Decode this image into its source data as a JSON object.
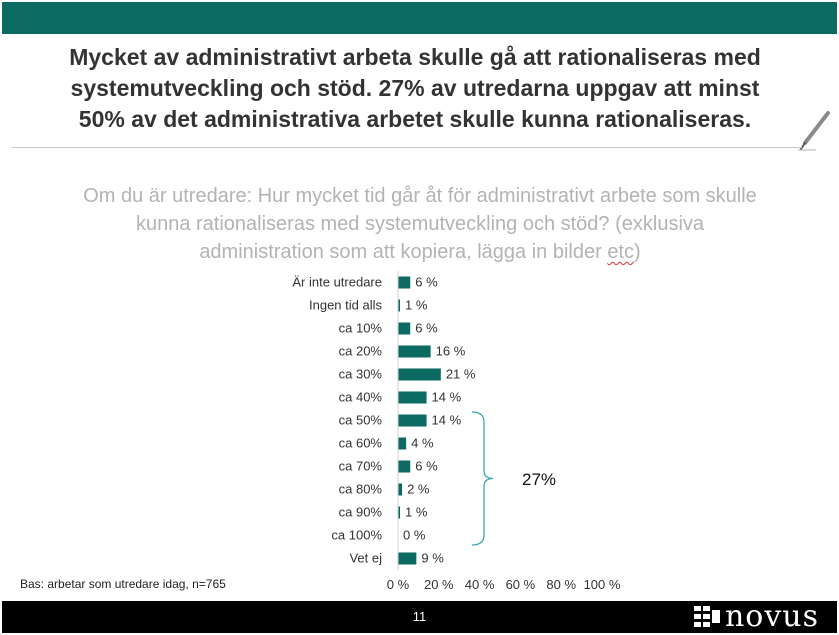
{
  "headline": {
    "line1": "Mycket av administrativt arbeta skulle gå att rationaliseras med",
    "line2": "systemutveckling och stöd. 27% av utredarna uppgav att minst",
    "line3": "50% av det administrativa arbetet skulle kunna rationaliseras."
  },
  "question": {
    "line1": "Om du är utredare: Hur mycket tid går åt för administrativt arbete som skulle",
    "line2": "kunna rationaliseras med systemutveckling och stöd? (exklusiva",
    "line3_a": "administration som att kopiera, lägga in bilder ",
    "line3_b": "etc",
    "line3_c": ")"
  },
  "chart_data": {
    "type": "bar",
    "orientation": "horizontal",
    "categories": [
      "Är inte utredare",
      "Ingen tid alls",
      "ca 10%",
      "ca 20%",
      "ca 30%",
      "ca 40%",
      "ca 50%",
      "ca 60%",
      "ca 70%",
      "ca 80%",
      "ca 90%",
      "ca 100%",
      "Vet ej"
    ],
    "values": [
      6,
      1,
      6,
      16,
      21,
      14,
      14,
      4,
      6,
      2,
      1,
      0,
      9
    ],
    "value_labels": [
      "6 %",
      "1 %",
      "6 %",
      "16 %",
      "21 %",
      "14 %",
      "14 %",
      "4 %",
      "6 %",
      "2 %",
      "1 %",
      "0 %",
      "9 %"
    ],
    "xlim": [
      0,
      100
    ],
    "x_ticks": [
      0,
      20,
      40,
      60,
      80,
      100
    ],
    "x_tick_labels": [
      "0 %",
      "20 %",
      "40 %",
      "60 %",
      "80 %",
      "100 %"
    ],
    "bar_color": "#0b6a62",
    "grid": false,
    "bracket": {
      "from_category": "ca 50%",
      "to_category": "ca 100%",
      "label": "27%",
      "color": "#3aa6b5"
    }
  },
  "base_note": "Bas: arbetar som utredare idag, n=765",
  "footer": {
    "page_number": "11",
    "logo_text": "novus",
    "logo_icon": "novus-grid-logo-icon"
  },
  "decor": {
    "pen_icon": "pen-icon"
  },
  "colors": {
    "accent": "#0b6a62",
    "footer_bg": "#000000",
    "question_text": "#b3b3b3"
  }
}
